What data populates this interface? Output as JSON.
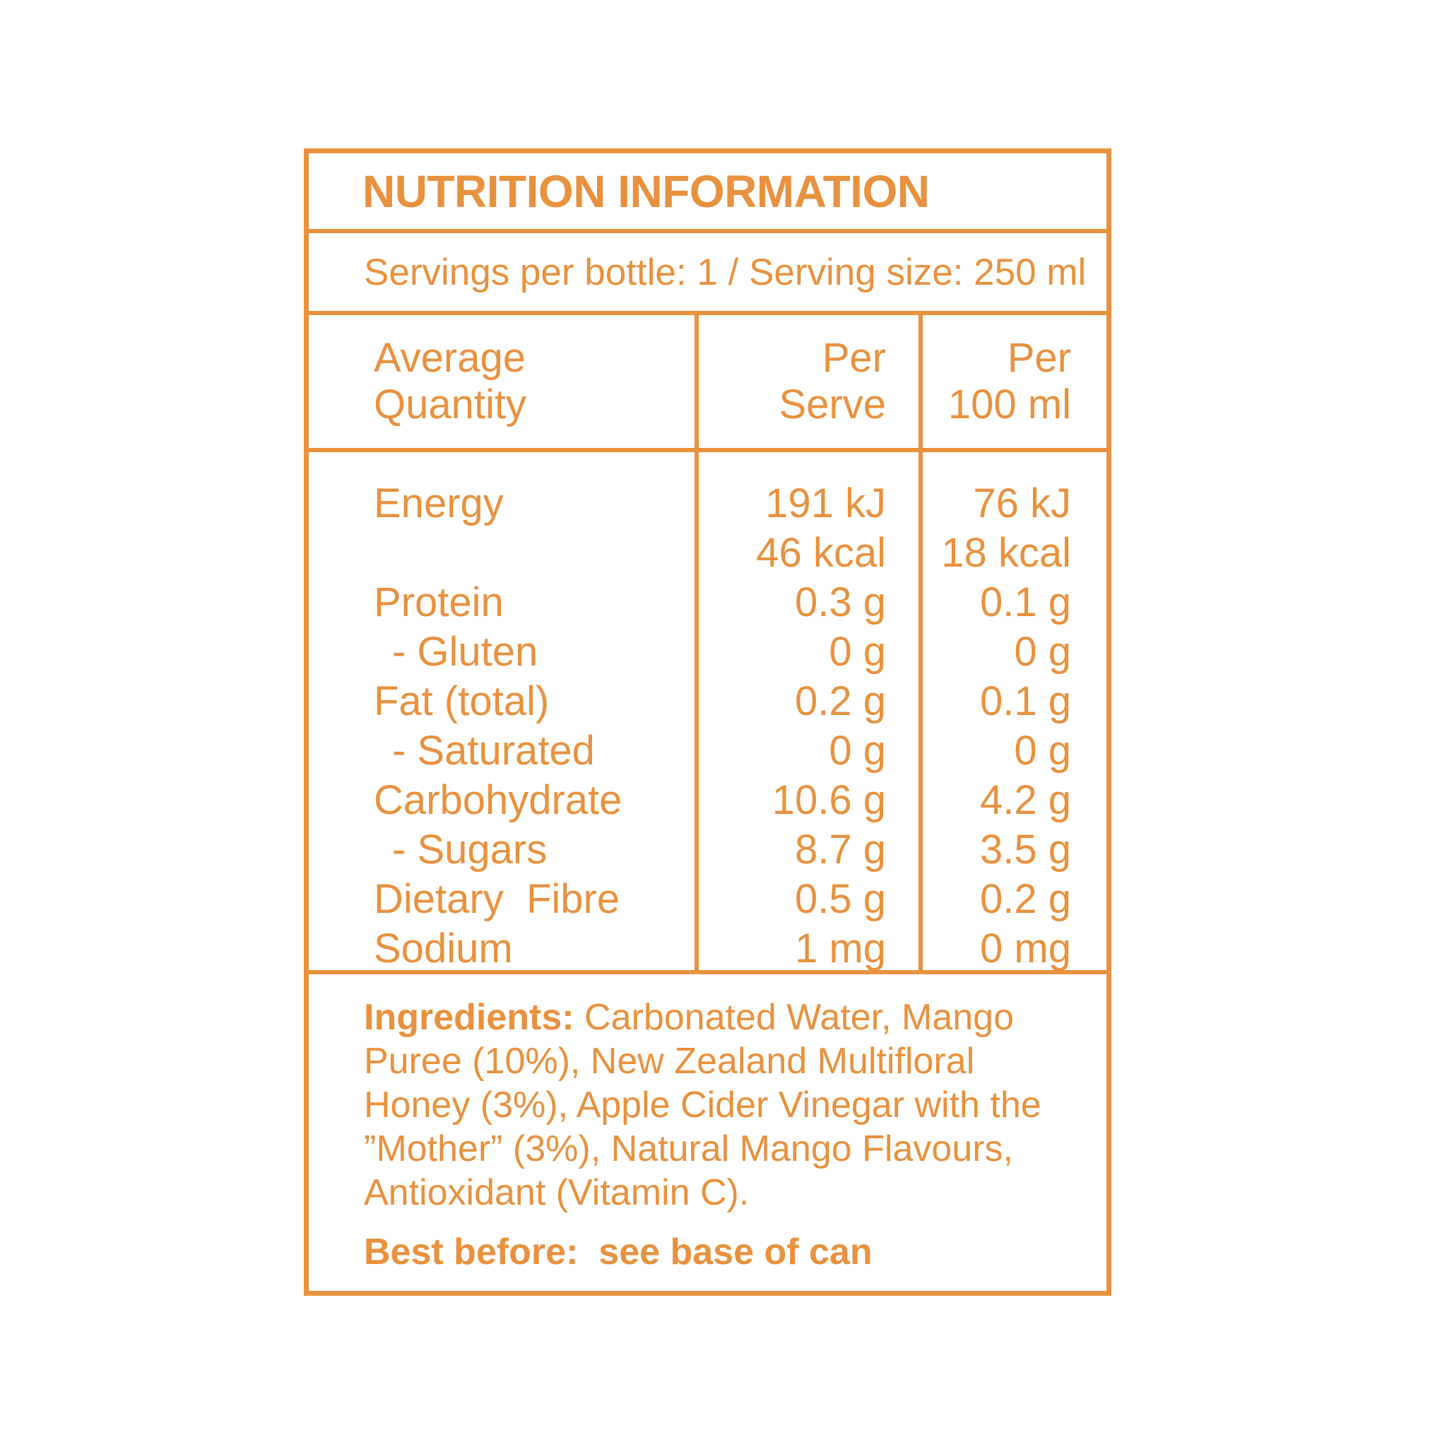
{
  "accent_color": "#E8913E",
  "panel": {
    "title": "NUTRITION INFORMATION",
    "servings_line": "Servings per bottle: 1 / Serving size: 250 ml",
    "table": {
      "header": [
        {
          "line1": "Average",
          "line2": "Quantity"
        },
        {
          "line1": "Per",
          "line2": "Serve"
        },
        {
          "line1": "Per",
          "line2": "100 ml"
        }
      ],
      "rows": [
        {
          "label": "Energy",
          "indent": false,
          "per_serve": [
            "191 kJ",
            "46 kcal"
          ],
          "per_100ml": [
            "76 kJ",
            "18 kcal"
          ]
        },
        {
          "label": "Protein",
          "indent": false,
          "per_serve": [
            "0.3 g"
          ],
          "per_100ml": [
            "0.1 g"
          ]
        },
        {
          "label": "- Gluten",
          "indent": true,
          "per_serve": [
            "0 g"
          ],
          "per_100ml": [
            "0 g"
          ]
        },
        {
          "label": "Fat (total)",
          "indent": false,
          "per_serve": [
            "0.2 g"
          ],
          "per_100ml": [
            "0.1 g"
          ]
        },
        {
          "label": "- Saturated",
          "indent": true,
          "per_serve": [
            "0 g"
          ],
          "per_100ml": [
            "0 g"
          ]
        },
        {
          "label": "Carbohydrate",
          "indent": false,
          "per_serve": [
            "10.6 g"
          ],
          "per_100ml": [
            "4.2 g"
          ]
        },
        {
          "label": "- Sugars",
          "indent": true,
          "per_serve": [
            "8.7 g"
          ],
          "per_100ml": [
            "3.5 g"
          ]
        },
        {
          "label": "Dietary  Fibre",
          "indent": false,
          "per_serve": [
            "0.5 g"
          ],
          "per_100ml": [
            "0.2 g"
          ]
        },
        {
          "label": "Sodium",
          "indent": false,
          "per_serve": [
            "1 mg"
          ],
          "per_100ml": [
            "0 mg"
          ]
        }
      ]
    },
    "ingredients": {
      "heading": "Ingredients:",
      "text": " Carbonated Water, Mango Puree (10%), New Zealand Multifloral Honey (3%), Apple Cider Vinegar with the ”Mother” (3%), Natural Mango Flavours, Antioxidant (Vitamin C)."
    },
    "best_before_line": "Best before:  see base of can"
  }
}
